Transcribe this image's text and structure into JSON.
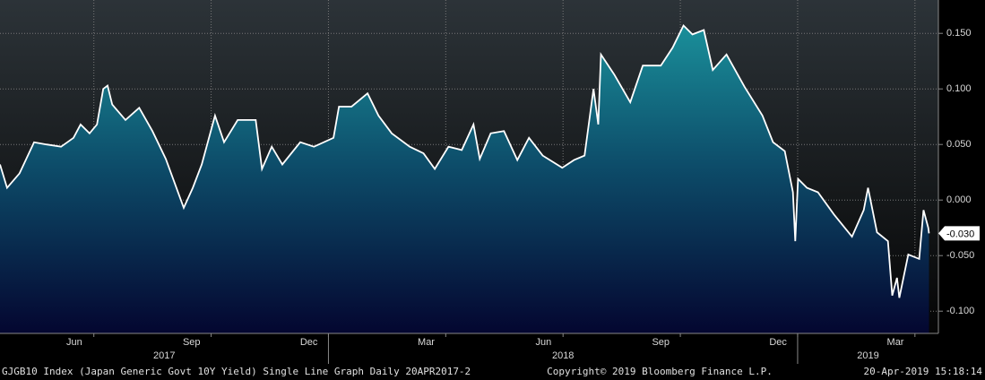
{
  "chart_data": {
    "type": "area",
    "x": [
      3.6,
      3.78,
      4.1,
      4.47,
      4.79,
      5.16,
      5.48,
      5.66,
      5.89,
      6.08,
      6.24,
      6.35,
      6.47,
      6.81,
      7.16,
      7.5,
      7.84,
      8.07,
      8.3,
      8.53,
      8.76,
      9.1,
      9.33,
      9.68,
      10.14,
      10.3,
      10.55,
      10.82,
      11.28,
      11.63,
      12.13,
      12.27,
      12.59,
      13.0,
      13.28,
      13.62,
      14.08,
      14.43,
      14.72,
      15.07,
      15.41,
      15.71,
      15.87,
      16.15,
      16.49,
      16.83,
      17.13,
      17.48,
      17.98,
      18.28,
      18.55,
      18.78,
      18.9,
      18.97,
      19.31,
      19.72,
      20.04,
      20.5,
      20.8,
      21.08,
      21.31,
      21.6,
      21.83,
      22.18,
      22.64,
      23.1,
      23.37,
      23.67,
      23.88,
      23.94,
      24.01,
      24.24,
      24.52,
      24.93,
      25.39,
      25.69,
      25.8,
      26.03,
      26.31,
      26.42,
      26.54,
      26.6,
      26.83,
      27.11,
      27.22,
      27.34,
      27.36
    ],
    "values": [
      0.032,
      0.011,
      0.024,
      0.052,
      0.05,
      0.048,
      0.056,
      0.068,
      0.06,
      0.068,
      0.1,
      0.103,
      0.086,
      0.072,
      0.083,
      0.062,
      0.037,
      0.015,
      -0.007,
      0.011,
      0.032,
      0.076,
      0.052,
      0.072,
      0.072,
      0.028,
      0.048,
      0.032,
      0.052,
      0.048,
      0.056,
      0.084,
      0.084,
      0.096,
      0.076,
      0.06,
      0.048,
      0.042,
      0.028,
      0.048,
      0.045,
      0.068,
      0.037,
      0.06,
      0.062,
      0.036,
      0.056,
      0.04,
      0.029,
      0.036,
      0.04,
      0.1,
      0.068,
      0.131,
      0.113,
      0.088,
      0.121,
      0.121,
      0.137,
      0.157,
      0.149,
      0.153,
      0.117,
      0.131,
      0.102,
      0.076,
      0.052,
      0.044,
      0.007,
      -0.037,
      0.019,
      0.011,
      0.007,
      -0.013,
      -0.033,
      -0.009,
      0.011,
      -0.029,
      -0.037,
      -0.086,
      -0.07,
      -0.088,
      -0.049,
      -0.053,
      -0.009,
      -0.025,
      -0.03
    ],
    "color": "#ffffff",
    "xlim": [
      3.6,
      27.6
    ],
    "xticks": [
      {
        "value": 5.5,
        "label": "Jun"
      },
      {
        "value": 8.5,
        "label": "Sep"
      },
      {
        "value": 11.5,
        "label": "Dec"
      },
      {
        "value": 14.5,
        "label": "Mar"
      },
      {
        "value": 17.5,
        "label": "Jun"
      },
      {
        "value": 20.5,
        "label": "Sep"
      },
      {
        "value": 23.5,
        "label": "Dec"
      },
      {
        "value": 26.5,
        "label": "Mar"
      }
    ],
    "xgrid": [
      6,
      9,
      12,
      15,
      18,
      21,
      24,
      27
    ],
    "year_labels": [
      "2017",
      "2018",
      "2019"
    ],
    "year_breaks": [
      12,
      24
    ],
    "ylim": [
      -0.12,
      0.18
    ],
    "yticks": [
      {
        "value": 0.15,
        "label": "0.150"
      },
      {
        "value": 0.1,
        "label": "0.100"
      },
      {
        "value": 0.05,
        "label": "0.050"
      },
      {
        "value": 0,
        "label": "0.000"
      },
      {
        "value": -0.05,
        "label": "-0.050"
      },
      {
        "value": -0.1,
        "label": "-0.100"
      }
    ],
    "grid": true,
    "current_value": {
      "value": -0.03,
      "label": "-0.030"
    },
    "footer_left": "GJGB10 Index (Japan Generic Govt 10Y Yield) Single Line Graph  Daily 20APR2017-2",
    "footer_center": "Copyright© 2019 Bloomberg Finance L.P.",
    "footer_right": "20-Apr-2019 15:18:14"
  }
}
